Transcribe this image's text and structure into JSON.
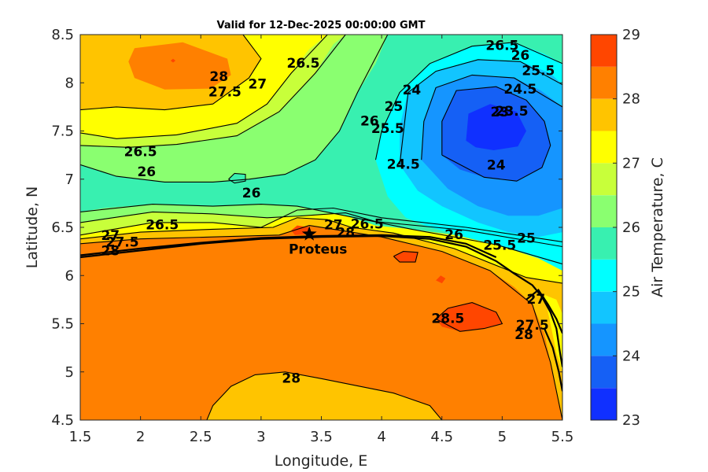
{
  "chart_data": {
    "type": "heatmap",
    "title": "Valid for 12-Dec-2025 00:00:00 GMT",
    "xlabel": "Longitude, E",
    "ylabel": "Latitude, N",
    "xlim": [
      1.5,
      5.5
    ],
    "ylim": [
      4.5,
      8.5
    ],
    "x_ticks": [
      "1.5",
      "2",
      "2.5",
      "3",
      "3.5",
      "4",
      "4.5",
      "5",
      "5.5"
    ],
    "y_ticks": [
      "4.5",
      "5",
      "5.5",
      "6",
      "6.5",
      "7",
      "7.5",
      "8",
      "8.5"
    ],
    "colorbar": {
      "label": "Air Temperature, C",
      "ticks": [
        "23",
        "24",
        "25",
        "26",
        "27",
        "28",
        "29"
      ],
      "range": [
        23,
        29
      ],
      "levels": [
        23,
        23.5,
        24,
        24.5,
        25,
        25.5,
        26,
        26.5,
        27,
        27.5,
        28,
        28.5,
        29
      ],
      "colors": [
        "#0000ff",
        "#0055ff",
        "#00aaff",
        "#00ffff",
        "#55ffaa",
        "#aaff55",
        "#ffff00",
        "#ffaa00",
        "#ff5500",
        "#ff0000"
      ]
    },
    "palette": {
      "23.25": "#1030ff",
      "23.75": "#1560f5",
      "24.25": "#1595ff",
      "24.75": "#12c5ff",
      "25.25": "#00ffff",
      "25.75": "#38f0b0",
      "26.25": "#8aff70",
      "26.75": "#c8ff3a",
      "27.25": "#ffff00",
      "27.75": "#ffc400",
      "28.25": "#ff8000",
      "28.75": "#ff4600",
      "29": "#ff0000"
    },
    "contour_labels": [
      {
        "text": "28",
        "lon": 2.65,
        "lat": 8.06
      },
      {
        "text": "27.5",
        "lon": 2.7,
        "lat": 7.9
      },
      {
        "text": "27",
        "lon": 2.97,
        "lat": 7.98
      },
      {
        "text": "26.5",
        "lon": 3.35,
        "lat": 8.2
      },
      {
        "text": "26.5",
        "lon": 2.0,
        "lat": 7.28
      },
      {
        "text": "26",
        "lon": 2.05,
        "lat": 7.07
      },
      {
        "text": "26",
        "lon": 3.9,
        "lat": 7.6
      },
      {
        "text": "25.5",
        "lon": 4.05,
        "lat": 7.52
      },
      {
        "text": "25",
        "lon": 4.1,
        "lat": 7.75
      },
      {
        "text": "24",
        "lon": 4.25,
        "lat": 7.92
      },
      {
        "text": "24.5",
        "lon": 4.18,
        "lat": 7.15
      },
      {
        "text": "26.5",
        "lon": 5.0,
        "lat": 8.38
      },
      {
        "text": "26",
        "lon": 5.15,
        "lat": 8.28
      },
      {
        "text": "25.5",
        "lon": 5.3,
        "lat": 8.12
      },
      {
        "text": "24.5",
        "lon": 5.15,
        "lat": 7.93
      },
      {
        "text": "23.5",
        "lon": 5.08,
        "lat": 7.7
      },
      {
        "text": "23",
        "lon": 4.98,
        "lat": 7.69
      },
      {
        "text": "24",
        "lon": 4.95,
        "lat": 7.14
      },
      {
        "text": "26",
        "lon": 2.92,
        "lat": 6.85
      },
      {
        "text": "26.5",
        "lon": 2.18,
        "lat": 6.52
      },
      {
        "text": "27",
        "lon": 3.6,
        "lat": 6.52
      },
      {
        "text": "26.5",
        "lon": 3.88,
        "lat": 6.53
      },
      {
        "text": "27",
        "lon": 1.75,
        "lat": 6.41
      },
      {
        "text": "27.5",
        "lon": 1.85,
        "lat": 6.34
      },
      {
        "text": "28",
        "lon": 1.75,
        "lat": 6.25
      },
      {
        "text": "28",
        "lon": 3.7,
        "lat": 6.44
      },
      {
        "text": "26",
        "lon": 4.6,
        "lat": 6.42
      },
      {
        "text": "25.5",
        "lon": 4.98,
        "lat": 6.31
      },
      {
        "text": "25",
        "lon": 5.2,
        "lat": 6.38
      },
      {
        "text": "28.5",
        "lon": 4.55,
        "lat": 5.55
      },
      {
        "text": "28",
        "lon": 3.25,
        "lat": 4.93
      },
      {
        "text": "27",
        "lon": 5.28,
        "lat": 5.75
      },
      {
        "text": "27.5",
        "lon": 5.25,
        "lat": 5.48
      },
      {
        "text": "28",
        "lon": 5.18,
        "lat": 5.38
      }
    ],
    "site": {
      "name": "Proteus",
      "lon": 3.4,
      "lat": 6.43,
      "marker": "star"
    }
  }
}
